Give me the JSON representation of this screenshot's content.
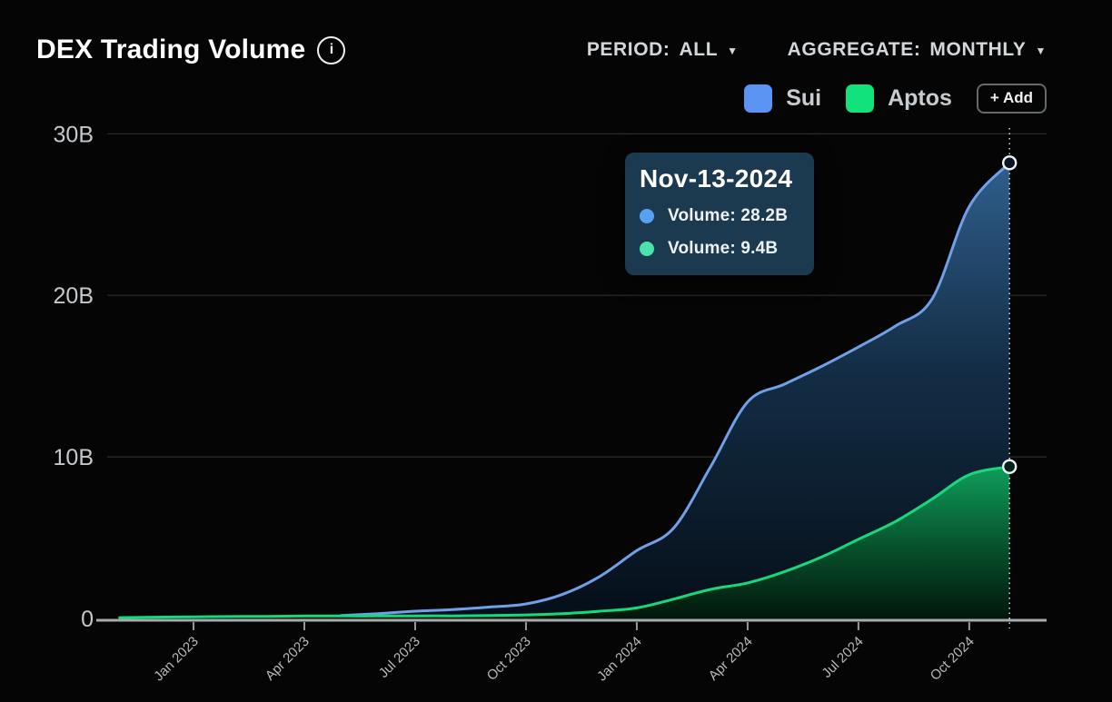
{
  "header": {
    "title": "DEX Trading Volume",
    "period_label": "PERIOD:",
    "period_value": "ALL",
    "aggregate_label": "AGGREGATE:",
    "aggregate_value": "MONTHLY"
  },
  "icons": {
    "info": "i",
    "dropdown_caret": "▼"
  },
  "legend": {
    "items": [
      {
        "label": "Sui",
        "color": "#5b93f2"
      },
      {
        "label": "Aptos",
        "color": "#11e27c"
      }
    ],
    "add_button": "+ Add"
  },
  "tooltip": {
    "title": "Nov-13-2024",
    "rows": [
      {
        "series": "Sui",
        "dot_color": "#57a0f2",
        "label": "Volume: 28.2B"
      },
      {
        "series": "Aptos",
        "dot_color": "#4be3ab",
        "label": "Volume: 9.4B"
      }
    ],
    "bg": "#1c3a4f"
  },
  "chart_data": {
    "type": "area",
    "title": "DEX Trading Volume",
    "xlabel": "",
    "ylabel": "",
    "y_unit": "B (USD)",
    "ylim": [
      0,
      30
    ],
    "grid": true,
    "legend_position": "top-right",
    "aggregate": "monthly",
    "timeline_start": "Nov 2022",
    "y_ticks": [
      {
        "v": 0,
        "label": "0"
      },
      {
        "v": 10,
        "label": "10B"
      },
      {
        "v": 20,
        "label": "20B"
      },
      {
        "v": 30,
        "label": "30B"
      }
    ],
    "x_ticks": [
      {
        "i": 2,
        "label": "Jan 2023"
      },
      {
        "i": 5,
        "label": "Apr 2023"
      },
      {
        "i": 8,
        "label": "Jul 2023"
      },
      {
        "i": 11,
        "label": "Oct 2023"
      },
      {
        "i": 14,
        "label": "Jan 2024"
      },
      {
        "i": 17,
        "label": "Apr 2024"
      },
      {
        "i": 20,
        "label": "Jul 2024"
      },
      {
        "i": 23,
        "label": "Oct 2024"
      }
    ],
    "cursor": {
      "date": "Nov-13-2024",
      "month_index": 24.09,
      "sui_volume_B": 28.2,
      "aptos_volume_B": 9.4
    },
    "series": [
      {
        "name": "Sui",
        "line_color": "#6fa0e8",
        "start_month": "May 2023",
        "start_index": 6,
        "end_date": "Nov-13-2024",
        "monthly_values_B": [
          0.18,
          0.3,
          0.45,
          0.55,
          0.7,
          0.9,
          1.5,
          2.6,
          4.2,
          5.6,
          9.4,
          13.4,
          14.5,
          15.6,
          16.8,
          18.1,
          19.8,
          25.5,
          28.2
        ]
      },
      {
        "name": "Aptos",
        "line_color": "#16d97d",
        "start_month": "Nov 2022",
        "start_index": 0,
        "end_date": "Nov-13-2024",
        "monthly_values_B": [
          0.05,
          0.08,
          0.1,
          0.12,
          0.13,
          0.15,
          0.15,
          0.15,
          0.16,
          0.16,
          0.18,
          0.22,
          0.3,
          0.45,
          0.65,
          1.2,
          1.8,
          2.2,
          2.9,
          3.8,
          4.9,
          6.0,
          7.4,
          8.9,
          9.4
        ]
      }
    ]
  }
}
